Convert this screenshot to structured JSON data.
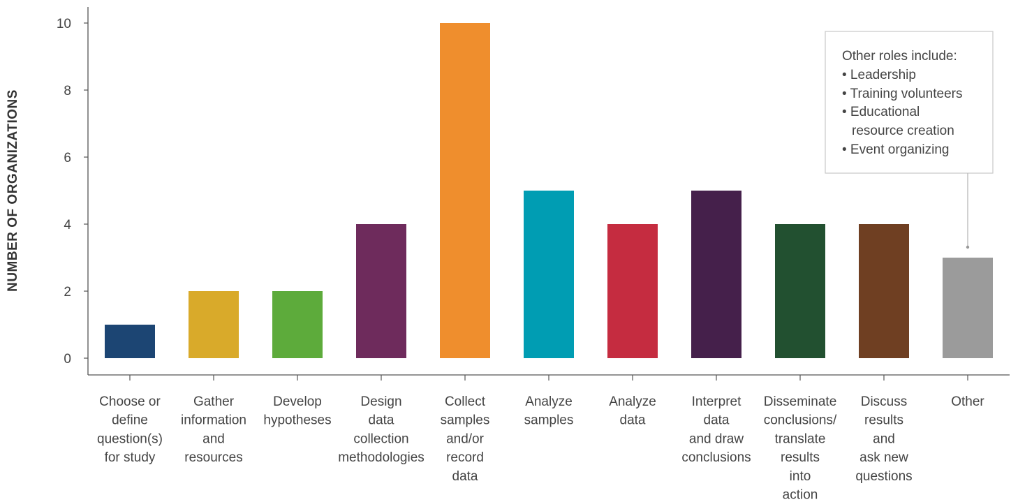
{
  "chart_data": {
    "type": "bar",
    "title": "",
    "xlabel": "",
    "ylabel": "NUMBER OF ORGANIZATIONS",
    "ylim": [
      0,
      10
    ],
    "y_ticks": [
      "0",
      "2",
      "4",
      "6",
      "8",
      "10"
    ],
    "grid": false,
    "legend": "none",
    "categories": [
      "Choose or define question(s) for study",
      "Gather information and resources",
      "Develop hypotheses",
      "Design data collection methodologies",
      "Collect samples and/or record data",
      "Analyze samples",
      "Analyze data",
      "Interpret data and draw conclusions",
      "Disseminate conclusions/ translate results into action",
      "Discuss results and ask new questions",
      "Other"
    ],
    "category_label_lines": [
      [
        "Choose or",
        "define",
        "question(s)",
        "for study"
      ],
      [
        "Gather",
        "information",
        "and",
        "resources"
      ],
      [
        "Develop",
        "hypotheses"
      ],
      [
        "Design",
        "data",
        "collection",
        "methodologies"
      ],
      [
        "Collect",
        "samples",
        "and/or",
        "record",
        "data"
      ],
      [
        "Analyze",
        "samples"
      ],
      [
        "Analyze",
        "data"
      ],
      [
        "Interpret",
        "data",
        "and draw",
        "conclusions"
      ],
      [
        "Disseminate",
        "conclusions/",
        "translate",
        "results",
        "into",
        "action"
      ],
      [
        "Discuss",
        "results",
        "and",
        "ask new",
        "questions"
      ],
      [
        "Other"
      ]
    ],
    "values": [
      1,
      2,
      2,
      4,
      10,
      5,
      4,
      5,
      4,
      4,
      3
    ],
    "colors": [
      "#1c4573",
      "#d9aa2a",
      "#5dab3b",
      "#6e2b5c",
      "#ef8e2d",
      "#009db3",
      "#c52c40",
      "#45204b",
      "#225030",
      "#6f3f22",
      "#9b9b9b"
    ],
    "annotation": {
      "target": "Other",
      "title": "Other roles include:",
      "lines": [
        "• Leadership",
        "• Training volunteers",
        "• Educational",
        "resource creation",
        "• Event organizing"
      ]
    }
  }
}
